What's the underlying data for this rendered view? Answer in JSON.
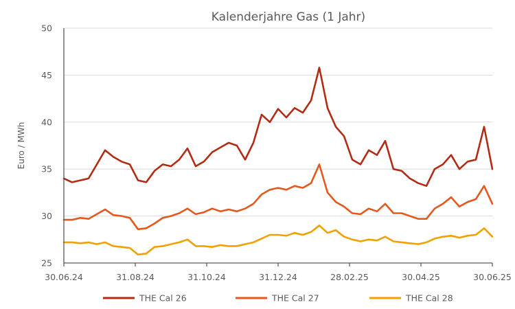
{
  "chart_data": {
    "type": "line",
    "title": "Kalenderjahre Gas (1 Jahr)",
    "xlabel": "",
    "ylabel": "Euro / MWh",
    "ylim": [
      25,
      50
    ],
    "yticks": [
      "25",
      "30",
      "35",
      "40",
      "45",
      "50"
    ],
    "xlim": [
      "30.06.24",
      "30.06.25"
    ],
    "xticks": [
      "30.06.24",
      "31.08.24",
      "31.10.24",
      "31.12.24",
      "28.02.25",
      "30.04.25",
      "30.06.25"
    ],
    "grid": true,
    "legend": "bottom",
    "x": [
      "30.06.24",
      "07.07.24",
      "14.07.24",
      "21.07.24",
      "28.07.24",
      "04.08.24",
      "11.08.24",
      "18.08.24",
      "25.08.24",
      "01.09.24",
      "08.09.24",
      "15.09.24",
      "22.09.24",
      "29.09.24",
      "06.10.24",
      "13.10.24",
      "20.10.24",
      "27.10.24",
      "03.11.24",
      "10.11.24",
      "17.11.24",
      "24.11.24",
      "01.12.24",
      "08.12.24",
      "15.12.24",
      "22.12.24",
      "29.12.24",
      "05.01.25",
      "12.01.25",
      "19.01.25",
      "26.01.25",
      "02.02.25",
      "09.02.25",
      "16.02.25",
      "23.02.25",
      "02.03.25",
      "09.03.25",
      "16.03.25",
      "23.03.25",
      "30.03.25",
      "06.04.25",
      "13.04.25",
      "20.04.25",
      "27.04.25",
      "04.05.25",
      "11.05.25",
      "18.05.25",
      "25.05.25",
      "01.06.25",
      "08.06.25",
      "15.06.25",
      "22.06.25",
      "30.06.25"
    ],
    "series": [
      {
        "name": "THE Cal 26",
        "color": "#b22b12",
        "values": [
          34.0,
          33.6,
          33.8,
          34.0,
          35.5,
          37.0,
          36.3,
          35.8,
          35.5,
          33.8,
          33.6,
          34.8,
          35.5,
          35.3,
          36.0,
          37.2,
          35.3,
          35.8,
          36.8,
          37.3,
          37.8,
          37.5,
          36.0,
          37.8,
          40.8,
          40.0,
          41.4,
          40.5,
          41.5,
          41.0,
          42.3,
          45.8,
          41.5,
          39.5,
          38.5,
          36.0,
          35.5,
          37.0,
          36.5,
          38.0,
          35.0,
          34.8,
          34.0,
          33.5,
          33.2,
          35.0,
          35.5,
          36.5,
          35.0,
          35.8,
          36.0,
          39.5,
          35.0
        ]
      },
      {
        "name": "THE Cal 27",
        "color": "#e5581d",
        "values": [
          29.6,
          29.6,
          29.8,
          29.7,
          30.2,
          30.7,
          30.1,
          30.0,
          29.8,
          28.6,
          28.7,
          29.2,
          29.8,
          30.0,
          30.3,
          30.8,
          30.2,
          30.4,
          30.8,
          30.5,
          30.7,
          30.5,
          30.8,
          31.3,
          32.3,
          32.8,
          33.0,
          32.8,
          33.2,
          33.0,
          33.5,
          35.5,
          32.5,
          31.5,
          31.0,
          30.3,
          30.2,
          30.8,
          30.5,
          31.3,
          30.3,
          30.3,
          30.0,
          29.7,
          29.7,
          30.8,
          31.3,
          32.0,
          31.0,
          31.5,
          31.8,
          33.2,
          31.3
        ]
      },
      {
        "name": "THE Cal 28",
        "color": "#f0a100",
        "values": [
          27.2,
          27.2,
          27.1,
          27.2,
          27.0,
          27.2,
          26.8,
          26.7,
          26.6,
          25.9,
          26.0,
          26.7,
          26.8,
          27.0,
          27.2,
          27.5,
          26.8,
          26.8,
          26.7,
          26.9,
          26.8,
          26.8,
          27.0,
          27.2,
          27.6,
          28.0,
          28.0,
          27.9,
          28.2,
          28.0,
          28.3,
          29.0,
          28.2,
          28.5,
          27.8,
          27.5,
          27.3,
          27.5,
          27.4,
          27.8,
          27.3,
          27.2,
          27.1,
          27.0,
          27.2,
          27.6,
          27.8,
          27.9,
          27.7,
          27.9,
          28.0,
          28.7,
          27.8
        ]
      }
    ]
  }
}
